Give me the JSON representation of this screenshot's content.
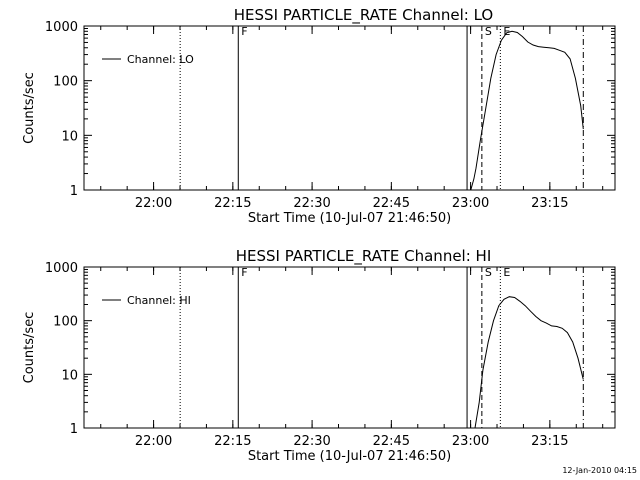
{
  "chart_data": [
    {
      "type": "line",
      "title": "HESSI PARTICLE_RATE Channel: LO",
      "xlabel": "Start Time (10-Jul-07 21:46:50)",
      "ylabel": "Counts/sec",
      "yscale": "log",
      "ylim": [
        1,
        1000
      ],
      "xlim_minutes_after_start": [
        0,
        100.5
      ],
      "xticks": [
        "22:00",
        "22:15",
        "22:30",
        "22:45",
        "23:00",
        "23:15"
      ],
      "xtick_minutes": [
        13.17,
        28.17,
        43.17,
        58.17,
        73.17,
        88.17
      ],
      "yticks": [
        "1",
        "10",
        "100",
        "1000"
      ],
      "ytick_values": [
        1,
        10,
        100,
        1000
      ],
      "legend": {
        "label": "Channel: LO",
        "position": "top-left"
      },
      "grid": false,
      "markers": [
        {
          "label": "",
          "time": "22:05",
          "minute": 18.2,
          "style": "dotted"
        },
        {
          "label": "F",
          "time": "22:16",
          "minute": 29.2,
          "style": "solid"
        },
        {
          "label": "",
          "time": "22:59",
          "minute": 72.5,
          "style": "solid"
        },
        {
          "label": "S",
          "time": "23:02",
          "minute": 75.3,
          "style": "dashed"
        },
        {
          "label": "E",
          "time": "23:06",
          "minute": 78.8,
          "style": "dotted"
        },
        {
          "label": "",
          "time": "23:21",
          "minute": 94.5,
          "style": "dashdot"
        }
      ],
      "series": [
        {
          "name": "Channel: LO",
          "x": [
            73.2,
            73.8,
            74.2,
            75.0,
            76.0,
            77.0,
            78.0,
            79.0,
            80.0,
            81.0,
            82.0,
            83.0,
            84.0,
            85.0,
            86.0,
            87.0,
            88.0,
            89.0,
            90.0,
            91.0,
            92.0,
            93.0,
            94.0,
            94.5
          ],
          "y": [
            1,
            1.6,
            2.5,
            8,
            30,
            110,
            300,
            550,
            750,
            800,
            760,
            640,
            510,
            450,
            420,
            410,
            400,
            390,
            360,
            330,
            250,
            110,
            35,
            13
          ]
        }
      ]
    },
    {
      "type": "line",
      "title": "HESSI PARTICLE_RATE Channel: HI",
      "xlabel": "Start Time (10-Jul-07 21:46:50)",
      "ylabel": "Counts/sec",
      "yscale": "log",
      "ylim": [
        1,
        1000
      ],
      "xlim_minutes_after_start": [
        0,
        100.5
      ],
      "xticks": [
        "22:00",
        "22:15",
        "22:30",
        "22:45",
        "23:00",
        "23:15"
      ],
      "xtick_minutes": [
        13.17,
        28.17,
        43.17,
        58.17,
        73.17,
        88.17
      ],
      "yticks": [
        "1",
        "10",
        "100",
        "1000"
      ],
      "ytick_values": [
        1,
        10,
        100,
        1000
      ],
      "legend": {
        "label": "Channel: HI",
        "position": "top-left"
      },
      "grid": false,
      "markers": [
        {
          "label": "",
          "time": "22:05",
          "minute": 18.2,
          "style": "dotted"
        },
        {
          "label": "F",
          "time": "22:16",
          "minute": 29.2,
          "style": "solid"
        },
        {
          "label": "",
          "time": "22:59",
          "minute": 72.5,
          "style": "solid"
        },
        {
          "label": "S",
          "time": "23:02",
          "minute": 75.3,
          "style": "dashed"
        },
        {
          "label": "E",
          "time": "23:06",
          "minute": 78.8,
          "style": "dotted"
        },
        {
          "label": "",
          "time": "23:21",
          "minute": 94.5,
          "style": "dashdot"
        }
      ],
      "series": [
        {
          "name": "Channel: HI",
          "x": [
            74.0,
            74.8,
            75.5,
            76.5,
            77.5,
            78.5,
            79.5,
            80.5,
            81.5,
            82.5,
            83.5,
            84.5,
            85.5,
            86.5,
            87.5,
            88.5,
            89.5,
            90.5,
            91.5,
            92.5,
            93.5,
            94.5
          ],
          "y": [
            1,
            3,
            12,
            40,
            100,
            190,
            250,
            280,
            270,
            230,
            190,
            150,
            120,
            100,
            90,
            80,
            78,
            72,
            60,
            40,
            20,
            8
          ]
        }
      ]
    }
  ],
  "footer": {
    "timestamp": "12-Jan-2010 04:15"
  }
}
